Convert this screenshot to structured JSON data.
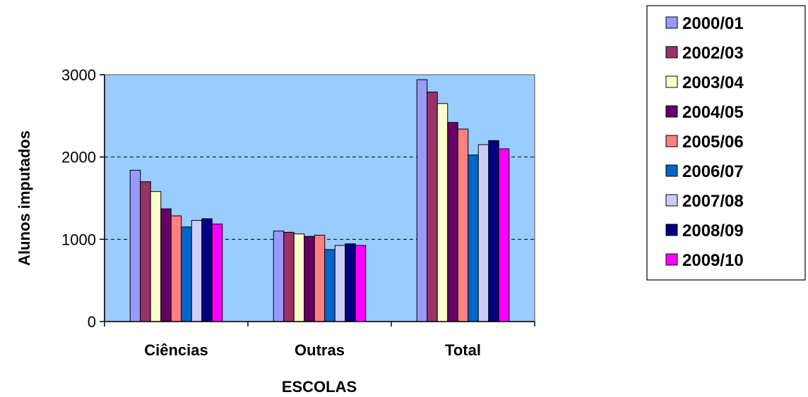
{
  "chart_data": {
    "type": "bar",
    "title": "",
    "xlabel": "ESCOLAS",
    "ylabel": "Alunos imputados",
    "ylim": [
      0,
      3000
    ],
    "yticks": [
      0,
      1000,
      2000,
      3000
    ],
    "grid": "horizontal-dashed",
    "legend_position": "right",
    "plot_background": "#99ccff",
    "categories": [
      "Ciências",
      "Outras",
      "Total"
    ],
    "series": [
      {
        "name": "2000/01",
        "color": "#9999ff",
        "values": [
          1840,
          1100,
          2940
        ]
      },
      {
        "name": "2002/03",
        "color": "#993366",
        "values": [
          1700,
          1085,
          2790
        ]
      },
      {
        "name": "2003/04",
        "color": "#ffffcc",
        "values": [
          1580,
          1065,
          2650
        ]
      },
      {
        "name": "2004/05",
        "color": "#660066",
        "values": [
          1370,
          1035,
          2420
        ]
      },
      {
        "name": "2005/06",
        "color": "#ff8080",
        "values": [
          1285,
          1050,
          2340
        ]
      },
      {
        "name": "2006/07",
        "color": "#0066cc",
        "values": [
          1150,
          875,
          2025
        ]
      },
      {
        "name": "2007/08",
        "color": "#ccccff",
        "values": [
          1230,
          925,
          2150
        ]
      },
      {
        "name": "2008/09",
        "color": "#000080",
        "values": [
          1250,
          945,
          2200
        ]
      },
      {
        "name": "2009/10",
        "color": "#ff00ff",
        "values": [
          1185,
          925,
          2100
        ]
      }
    ]
  }
}
